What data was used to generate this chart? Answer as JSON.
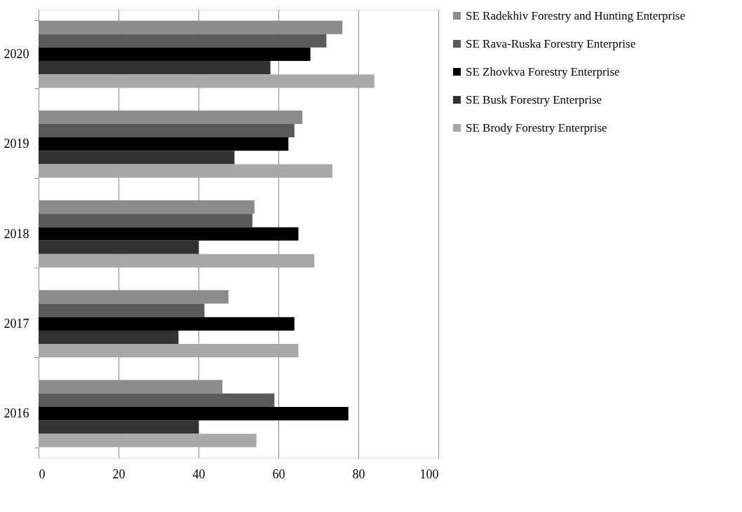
{
  "chart_data": {
    "type": "bar",
    "orientation": "horizontal",
    "categories": [
      "2020",
      "2019",
      "2018",
      "2017",
      "2016"
    ],
    "series": [
      {
        "name": "SE Radekhiv Forestry and Hunting Enterprise",
        "color": "#8c8c8c",
        "values": [
          76,
          66,
          54,
          47.5,
          46
        ]
      },
      {
        "name": "SE Rava-Ruska Forestry Enterprise",
        "color": "#5a5a5a",
        "values": [
          72,
          64,
          53.5,
          41.5,
          59
        ]
      },
      {
        "name": "SE Zhovkva Forestry Enterprise",
        "color": "#000000",
        "values": [
          68,
          62.5,
          65,
          64,
          77.5
        ]
      },
      {
        "name": "SE Busk Forestry Enterprise",
        "color": "#333333",
        "values": [
          58,
          49,
          40,
          35,
          40
        ]
      },
      {
        "name": "SE Brody Forestry Enterprise",
        "color": "#a8a8a8",
        "values": [
          84,
          73.5,
          69,
          65,
          54.5
        ]
      }
    ],
    "xlim": [
      0,
      100
    ],
    "xticks": [
      0,
      20,
      40,
      60,
      80,
      100
    ],
    "grid": "x",
    "legend": "right"
  }
}
